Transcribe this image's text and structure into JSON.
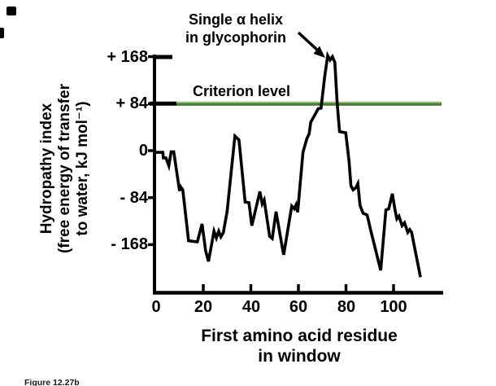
{
  "figure": {
    "annotation": {
      "line1": "Single α helix",
      "line2": "in glycophorin"
    },
    "criterion_label": "Criterion level",
    "y_axis": {
      "label_line1": "Hydropathy index",
      "label_line2": "(free energy of transfer",
      "label_line3": "to water, kJ mol⁻¹)",
      "ticks": [
        {
          "label": "+ 168",
          "value": 168
        },
        {
          "label": "+ 84",
          "value": 84
        },
        {
          "label": "0",
          "value": 0
        },
        {
          "label": "- 84",
          "value": -84
        },
        {
          "label": "- 168",
          "value": -168
        }
      ]
    },
    "x_axis": {
      "label_line1": "First amino acid residue",
      "label_line2": "in window",
      "ticks": [
        {
          "label": "0",
          "value": 0
        },
        {
          "label": "20",
          "value": 20
        },
        {
          "label": "40",
          "value": 40
        },
        {
          "label": "60",
          "value": 60
        },
        {
          "label": "80",
          "value": 80
        },
        {
          "label": "100",
          "value": 100
        }
      ]
    },
    "caption": "Figure 12.27b",
    "colors": {
      "ink": "#000000",
      "criterion_green": "#4a7a3b",
      "criterion_green_light": "#a6c98e"
    }
  },
  "chart_data": {
    "type": "line",
    "title": "",
    "xlabel": "First amino acid residue in window",
    "ylabel": "Hydropathy index (free energy of transfer to water, kJ mol⁻¹)",
    "xlim": [
      0,
      121
    ],
    "ylim": [
      -255,
      172
    ],
    "x_ticks": [
      0,
      20,
      40,
      60,
      80,
      100
    ],
    "y_ticks": [
      168,
      84,
      0,
      -84,
      -168
    ],
    "grid": false,
    "legend": false,
    "criterion_level": 84,
    "annotation": "Single α helix in glycophorin — arrow points to the peak (~+170) near residue 73",
    "series": [
      {
        "name": "hydropathy",
        "points": [
          [
            0,
            -3
          ],
          [
            3,
            -3
          ],
          [
            3.2,
            -13
          ],
          [
            4.3,
            -13
          ],
          [
            5.5,
            -27
          ],
          [
            6.5,
            -2
          ],
          [
            7.6,
            -2
          ],
          [
            10,
            -72
          ],
          [
            10.4,
            -64
          ],
          [
            11.4,
            -70
          ],
          [
            13.8,
            -161
          ],
          [
            17.5,
            -163
          ],
          [
            19.5,
            -131
          ],
          [
            21,
            -179
          ],
          [
            22.2,
            -198
          ],
          [
            24.5,
            -144
          ],
          [
            25.5,
            -156
          ],
          [
            26.5,
            -144
          ],
          [
            27.4,
            -154
          ],
          [
            28.4,
            -147
          ],
          [
            30,
            -109
          ],
          [
            33.3,
            26
          ],
          [
            35,
            19
          ],
          [
            36.2,
            -32
          ],
          [
            37.6,
            -92
          ],
          [
            39.2,
            -93
          ],
          [
            40.4,
            -134
          ],
          [
            43.8,
            -73
          ],
          [
            44.8,
            -95
          ],
          [
            45.6,
            -88
          ],
          [
            47.9,
            -153
          ],
          [
            49,
            -157
          ],
          [
            50.6,
            -109
          ],
          [
            53.3,
            -175
          ],
          [
            53.8,
            -186
          ],
          [
            57.2,
            -99
          ],
          [
            58.3,
            -104
          ],
          [
            59,
            -97
          ],
          [
            59.7,
            -110
          ],
          [
            60.3,
            -80
          ],
          [
            61.9,
            -3
          ],
          [
            63.6,
            22
          ],
          [
            64.5,
            30
          ],
          [
            65.2,
            51
          ],
          [
            67.7,
            70
          ],
          [
            68.3,
            75
          ],
          [
            69.5,
            76
          ],
          [
            71,
            131
          ],
          [
            72.3,
            170
          ],
          [
            73.3,
            162
          ],
          [
            74.3,
            168
          ],
          [
            75.3,
            158
          ],
          [
            76.3,
            84
          ],
          [
            77.3,
            34
          ],
          [
            79.9,
            32
          ],
          [
            81.3,
            -19
          ],
          [
            82.1,
            -63
          ],
          [
            83,
            -70
          ],
          [
            84.2,
            -66
          ],
          [
            85,
            -59
          ],
          [
            85.9,
            -98
          ],
          [
            87.2,
            -112
          ],
          [
            88.9,
            -115
          ],
          [
            89.4,
            -124
          ],
          [
            90.1,
            -137
          ],
          [
            94.6,
            -214
          ],
          [
            96.8,
            -106
          ],
          [
            98,
            -104
          ],
          [
            99.5,
            -77
          ],
          [
            100.6,
            -106
          ],
          [
            101.4,
            -122
          ],
          [
            102.3,
            -117
          ],
          [
            103.6,
            -134
          ],
          [
            104.6,
            -129
          ],
          [
            106,
            -146
          ],
          [
            106.8,
            -141
          ],
          [
            107.6,
            -146
          ],
          [
            111.3,
            -226
          ]
        ]
      }
    ]
  }
}
